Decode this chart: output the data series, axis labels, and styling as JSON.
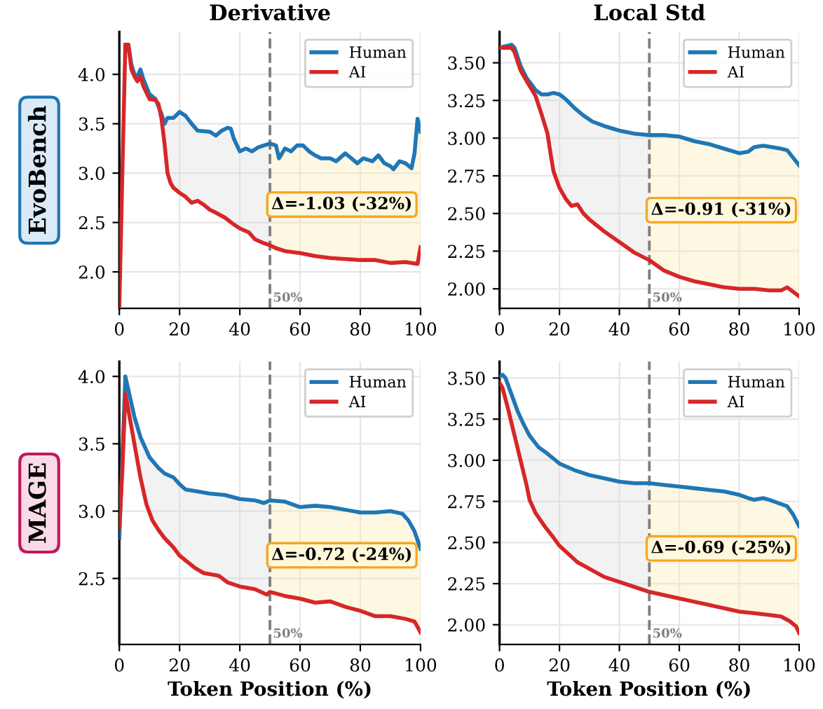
{
  "chart_data": [
    {
      "type": "line",
      "title": "Derivative",
      "ylabel": "EvoBench",
      "xlim": [
        0,
        100
      ],
      "xticks": [
        0,
        20,
        40,
        60,
        80,
        100
      ],
      "ylim": [
        1.63,
        4.43
      ],
      "yticks": [
        {
          "value": 2.0,
          "label": "2.0"
        },
        {
          "value": 2.5,
          "label": "2.5"
        },
        {
          "value": 3.0,
          "label": "3.0"
        },
        {
          "value": 3.5,
          "label": "3.5"
        },
        {
          "value": 4.0,
          "label": "4.0"
        }
      ],
      "grid": true,
      "legend": "top right",
      "series": [
        {
          "name": "Human",
          "color": "#1f77b4",
          "x": [
            2,
            3,
            4,
            5,
            6,
            7,
            8,
            10,
            12,
            14,
            15,
            16,
            18,
            20,
            22,
            24,
            26,
            30,
            32,
            34,
            36,
            37,
            38,
            40,
            42,
            44,
            46,
            48,
            50,
            52,
            53,
            55,
            57,
            59,
            61,
            63,
            65,
            67,
            70,
            72,
            75,
            77,
            79,
            81,
            84,
            86,
            88,
            90,
            91,
            93,
            95,
            97,
            98,
            99,
            100
          ],
          "values": [
            4.3,
            4.3,
            4.1,
            4.0,
            3.98,
            4.05,
            3.95,
            3.8,
            3.75,
            3.6,
            3.5,
            3.56,
            3.56,
            3.62,
            3.58,
            3.5,
            3.43,
            3.42,
            3.38,
            3.43,
            3.46,
            3.45,
            3.35,
            3.22,
            3.25,
            3.22,
            3.26,
            3.28,
            3.3,
            3.28,
            3.15,
            3.25,
            3.22,
            3.28,
            3.28,
            3.22,
            3.18,
            3.15,
            3.15,
            3.12,
            3.2,
            3.15,
            3.1,
            3.15,
            3.12,
            3.18,
            3.1,
            3.07,
            3.04,
            3.12,
            3.1,
            3.05,
            3.2,
            3.55,
            3.42
          ],
          "lower": [
            null,
            null,
            null,
            null,
            null,
            null,
            null,
            null,
            null,
            null,
            null,
            null,
            null,
            null,
            null,
            null,
            null,
            null,
            null,
            null,
            null,
            null,
            null,
            null,
            null,
            null,
            null,
            null,
            2.27,
            2.24,
            2.23,
            2.21,
            2.202,
            2.194,
            2.184,
            2.172,
            2.16,
            2.152,
            2.14,
            2.136,
            2.13,
            2.126,
            2.122,
            2.12,
            2.12,
            2.114,
            2.102,
            2.09,
            2.092,
            2.096,
            2.1,
            2.09,
            2.085,
            2.08,
            2.25
          ],
          "upper": [
            null,
            null,
            null,
            null,
            null,
            null,
            null,
            null,
            null,
            null,
            null,
            null,
            null,
            null,
            null,
            null,
            null,
            null,
            null,
            null,
            null,
            null,
            null,
            null,
            null,
            null,
            null,
            null,
            3.3,
            3.28,
            3.15,
            3.25,
            3.22,
            3.28,
            3.28,
            3.22,
            3.18,
            3.15,
            3.15,
            3.12,
            3.2,
            3.15,
            3.1,
            3.15,
            3.12,
            3.18,
            3.1,
            3.07,
            3.04,
            3.12,
            3.1,
            3.05,
            3.2,
            3.55,
            3.42
          ]
        },
        {
          "name": "AI",
          "color": "#d62728",
          "x": [
            0,
            1,
            2,
            3,
            4,
            5,
            6,
            7,
            8,
            10,
            12,
            13,
            14,
            15,
            16,
            17,
            18,
            20,
            22,
            24,
            26,
            28,
            30,
            32,
            35,
            38,
            40,
            43,
            45,
            48,
            50,
            52,
            55,
            60,
            65,
            70,
            75,
            80,
            85,
            90,
            95,
            99,
            100
          ],
          "values": [
            1.65,
            3.0,
            4.3,
            4.3,
            4.05,
            3.98,
            3.93,
            3.98,
            3.88,
            3.75,
            3.74,
            3.7,
            3.55,
            3.3,
            3.0,
            2.9,
            2.85,
            2.8,
            2.76,
            2.7,
            2.72,
            2.68,
            2.63,
            2.6,
            2.55,
            2.48,
            2.44,
            2.4,
            2.33,
            2.29,
            2.27,
            2.24,
            2.21,
            2.19,
            2.16,
            2.14,
            2.13,
            2.12,
            2.12,
            2.09,
            2.1,
            2.08,
            2.25
          ],
          "lower": [
            null,
            null,
            4.3,
            4.3,
            4.05,
            3.98,
            3.93,
            3.98,
            3.88,
            3.75,
            3.74,
            3.7,
            3.55,
            3.3,
            3.0,
            2.9,
            2.85,
            2.8,
            2.76,
            2.7,
            2.72,
            2.68,
            2.63,
            2.6,
            2.55,
            2.48,
            2.44,
            2.4,
            2.33,
            2.29,
            2.27,
            null,
            null,
            null,
            null,
            null,
            null,
            null,
            null,
            null,
            null,
            null,
            null
          ],
          "upper": [
            null,
            null,
            4.3,
            4.3,
            4.1,
            4.0,
            3.98,
            4.05,
            3.95,
            3.8,
            3.75,
            3.675,
            3.6,
            3.5,
            3.56,
            3.56,
            3.56,
            3.62,
            3.58,
            3.5,
            3.43,
            3.425,
            3.42,
            3.38,
            3.445,
            3.35,
            3.22,
            3.235,
            3.24,
            3.28,
            3.3,
            null,
            null,
            null,
            null,
            null,
            null,
            null,
            null,
            null,
            null,
            null,
            null
          ]
        }
      ],
      "ref_lines": [
        {
          "axis": "x",
          "value": 50,
          "label": "50%",
          "color": "#808080",
          "line_style": "dashed"
        }
      ],
      "annotations": [
        "Δ=-1.03 (-32%)"
      ]
    },
    {
      "type": "line",
      "title": "Local Std",
      "xlim": [
        0,
        100
      ],
      "xticks": [
        0,
        20,
        40,
        60,
        80,
        100
      ],
      "ylim": [
        1.87,
        3.705
      ],
      "yticks": [
        {
          "value": 2.0,
          "label": "2.00"
        },
        2.25,
        {
          "value": 2.5,
          "label": "2.50"
        },
        2.75,
        {
          "value": 3.0,
          "label": "3.00"
        },
        3.25,
        {
          "value": 3.5,
          "label": "3.50"
        }
      ],
      "grid": true,
      "legend": "top right",
      "series": [
        {
          "name": "Human",
          "color": "#1f77b4",
          "x": [
            0,
            2,
            4,
            5,
            7,
            9,
            12,
            14,
            16,
            18,
            20,
            22,
            25,
            28,
            31,
            35,
            40,
            45,
            50,
            55,
            60,
            65,
            70,
            75,
            80,
            83,
            85,
            88,
            91,
            94,
            96,
            98,
            100
          ],
          "values": [
            3.6,
            3.61,
            3.62,
            3.6,
            3.48,
            3.4,
            3.32,
            3.29,
            3.29,
            3.3,
            3.29,
            3.26,
            3.2,
            3.15,
            3.11,
            3.08,
            3.05,
            3.03,
            3.02,
            3.02,
            3.01,
            2.98,
            2.96,
            2.93,
            2.9,
            2.91,
            2.94,
            2.95,
            2.94,
            2.93,
            2.92,
            2.87,
            2.82
          ],
          "lower": [
            null,
            null,
            null,
            null,
            null,
            null,
            null,
            null,
            null,
            null,
            null,
            null,
            null,
            null,
            null,
            null,
            null,
            null,
            2.19,
            2.12,
            2.08,
            2.05,
            2.03,
            2.01,
            2.0,
            2.0,
            2.0,
            1.994,
            1.99,
            1.99,
            2.01,
            1.98,
            1.95
          ],
          "upper": [
            null,
            null,
            null,
            null,
            null,
            null,
            null,
            null,
            null,
            null,
            null,
            null,
            null,
            null,
            null,
            null,
            null,
            null,
            3.02,
            3.02,
            3.01,
            2.98,
            2.96,
            2.93,
            2.9,
            2.91,
            2.94,
            2.95,
            2.94,
            2.93,
            2.92,
            2.87,
            2.82
          ]
        },
        {
          "name": "AI",
          "color": "#d62728",
          "x": [
            0,
            2,
            4,
            5,
            7,
            9,
            12,
            14,
            16,
            17,
            18,
            20,
            22,
            24,
            26,
            28,
            30,
            35,
            40,
            45,
            50,
            55,
            60,
            65,
            70,
            75,
            80,
            85,
            90,
            94,
            96,
            98,
            100
          ],
          "values": [
            3.6,
            3.6,
            3.6,
            3.57,
            3.45,
            3.38,
            3.28,
            3.16,
            3.03,
            2.9,
            2.78,
            2.67,
            2.6,
            2.55,
            2.56,
            2.5,
            2.46,
            2.38,
            2.31,
            2.24,
            2.19,
            2.12,
            2.08,
            2.05,
            2.03,
            2.01,
            2.0,
            2.0,
            1.99,
            1.99,
            2.01,
            1.98,
            1.95
          ],
          "lower": [
            3.6,
            3.6,
            3.6,
            3.57,
            3.45,
            3.38,
            3.28,
            3.16,
            3.03,
            2.9,
            2.78,
            2.67,
            2.6,
            2.55,
            2.56,
            2.5,
            2.46,
            2.38,
            2.31,
            2.24,
            2.19,
            null,
            null,
            null,
            null,
            null,
            null,
            null,
            null,
            null,
            null,
            null,
            null
          ],
          "upper": [
            3.6,
            3.61,
            3.62,
            3.6,
            3.48,
            3.4,
            3.32,
            3.29,
            3.29,
            3.295,
            3.3,
            3.29,
            3.26,
            3.22,
            3.183,
            3.15,
            3.123,
            3.08,
            3.05,
            3.03,
            3.02,
            null,
            null,
            null,
            null,
            null,
            null,
            null,
            null,
            null,
            null,
            null,
            null
          ]
        }
      ],
      "ref_lines": [
        {
          "axis": "x",
          "value": 50,
          "label": "50%",
          "color": "#808080",
          "line_style": "dashed"
        }
      ],
      "annotations": [
        "Δ=-0.91 (-31%)"
      ]
    },
    {
      "type": "line",
      "ylabel": "MAGE",
      "xlabel": "Token Position (%)",
      "xlim": [
        0,
        100
      ],
      "xticks": [
        0,
        20,
        40,
        60,
        80,
        100
      ],
      "ylim": [
        2.01,
        4.11
      ],
      "yticks": [
        {
          "value": 2.5,
          "label": "2.5"
        },
        {
          "value": 3.0,
          "label": "3.0"
        },
        {
          "value": 3.5,
          "label": "3.5"
        },
        {
          "value": 4.0,
          "label": "4.0"
        }
      ],
      "grid": true,
      "legend": "top right",
      "series": [
        {
          "name": "Human",
          "color": "#1f77b4",
          "x": [
            0,
            1,
            2,
            3,
            5,
            7,
            10,
            13,
            15,
            18,
            20,
            22,
            25,
            30,
            35,
            40,
            45,
            48,
            50,
            55,
            60,
            65,
            70,
            75,
            80,
            85,
            90,
            94,
            96,
            98,
            100
          ],
          "values": [
            2.8,
            3.4,
            4.0,
            3.9,
            3.7,
            3.55,
            3.4,
            3.32,
            3.28,
            3.25,
            3.2,
            3.16,
            3.15,
            3.13,
            3.12,
            3.09,
            3.08,
            3.06,
            3.08,
            3.07,
            3.03,
            3.04,
            3.03,
            3.01,
            2.99,
            2.99,
            3.0,
            2.98,
            2.93,
            2.85,
            2.72
          ],
          "lower": [
            null,
            null,
            null,
            null,
            null,
            null,
            null,
            null,
            null,
            null,
            null,
            null,
            null,
            null,
            null,
            null,
            null,
            null,
            2.4,
            2.37,
            2.35,
            2.32,
            2.33,
            2.29,
            2.26,
            2.22,
            2.22,
            2.204,
            2.193,
            2.18,
            2.1
          ],
          "upper": [
            null,
            null,
            null,
            null,
            null,
            null,
            null,
            null,
            null,
            null,
            null,
            null,
            null,
            null,
            null,
            null,
            null,
            null,
            3.08,
            3.07,
            3.03,
            3.04,
            3.03,
            3.01,
            2.99,
            2.99,
            3.0,
            2.98,
            2.93,
            2.85,
            2.72
          ]
        },
        {
          "name": "AI",
          "color": "#d62728",
          "x": [
            0,
            1,
            2,
            3,
            5,
            7,
            9,
            11,
            13,
            15,
            18,
            20,
            25,
            28,
            33,
            36,
            40,
            45,
            49,
            50,
            55,
            60,
            65,
            70,
            75,
            80,
            85,
            90,
            95,
            98,
            100
          ],
          "values": [
            2.88,
            3.3,
            3.87,
            3.75,
            3.5,
            3.25,
            3.05,
            2.93,
            2.86,
            2.8,
            2.73,
            2.67,
            2.58,
            2.54,
            2.52,
            2.47,
            2.44,
            2.42,
            2.38,
            2.4,
            2.37,
            2.35,
            2.32,
            2.33,
            2.29,
            2.26,
            2.22,
            2.22,
            2.2,
            2.18,
            2.1
          ],
          "lower": [
            2.88,
            3.3,
            3.87,
            3.75,
            3.5,
            3.25,
            3.05,
            2.93,
            2.86,
            2.8,
            2.73,
            2.67,
            2.58,
            2.54,
            2.52,
            2.47,
            2.44,
            2.42,
            2.38,
            2.4,
            null,
            null,
            null,
            null,
            null,
            null,
            null,
            null,
            null,
            null,
            null
          ],
          "upper": [
            2.8,
            3.4,
            4.0,
            3.9,
            3.7,
            3.55,
            3.45,
            3.373,
            3.32,
            3.28,
            3.25,
            3.2,
            3.15,
            3.138,
            3.124,
            3.118,
            3.09,
            3.08,
            3.07,
            3.08,
            null,
            null,
            null,
            null,
            null,
            null,
            null,
            null,
            null,
            null,
            null
          ]
        }
      ],
      "ref_lines": [
        {
          "axis": "x",
          "value": 50,
          "label": "50%",
          "color": "#808080",
          "line_style": "dashed"
        }
      ],
      "annotations": [
        "Δ=-0.72 (-24%)"
      ]
    },
    {
      "type": "line",
      "xlabel": "Token Position (%)",
      "xlim": [
        0,
        100
      ],
      "xticks": [
        0,
        20,
        40,
        60,
        80,
        100
      ],
      "ylim": [
        1.88,
        3.6
      ],
      "yticks": [
        {
          "value": 2.0,
          "label": "2.00"
        },
        2.25,
        {
          "value": 2.5,
          "label": "2.50"
        },
        2.75,
        {
          "value": 3.0,
          "label": "3.00"
        },
        3.25,
        {
          "value": 3.5,
          "label": "3.50"
        }
      ],
      "grid": true,
      "legend": "top right",
      "series": [
        {
          "name": "Human",
          "color": "#1f77b4",
          "x": [
            0,
            1,
            2,
            4,
            6,
            8,
            10,
            13,
            16,
            20,
            25,
            30,
            35,
            40,
            45,
            50,
            55,
            60,
            65,
            70,
            75,
            80,
            83,
            85,
            88,
            90,
            93,
            96,
            98,
            100
          ],
          "values": [
            3.51,
            3.52,
            3.5,
            3.4,
            3.3,
            3.22,
            3.15,
            3.08,
            3.04,
            2.98,
            2.94,
            2.91,
            2.89,
            2.87,
            2.86,
            2.86,
            2.85,
            2.84,
            2.83,
            2.82,
            2.81,
            2.79,
            2.77,
            2.76,
            2.77,
            2.76,
            2.74,
            2.72,
            2.67,
            2.6
          ],
          "lower": [
            null,
            null,
            null,
            null,
            null,
            null,
            null,
            null,
            null,
            null,
            null,
            null,
            null,
            null,
            null,
            2.2,
            2.18,
            2.16,
            2.14,
            2.12,
            2.1,
            2.08,
            2.074,
            2.07,
            2.064,
            2.06,
            2.053,
            2.04,
            2.007,
            1.95
          ],
          "upper": [
            null,
            null,
            null,
            null,
            null,
            null,
            null,
            null,
            null,
            null,
            null,
            null,
            null,
            null,
            null,
            2.86,
            2.85,
            2.84,
            2.83,
            2.82,
            2.81,
            2.79,
            2.77,
            2.76,
            2.77,
            2.76,
            2.74,
            2.72,
            2.67,
            2.6
          ]
        },
        {
          "name": "AI",
          "color": "#d62728",
          "x": [
            0,
            1,
            3,
            5,
            7,
            9,
            10,
            12,
            15,
            18,
            20,
            23,
            26,
            30,
            35,
            40,
            45,
            50,
            55,
            60,
            65,
            70,
            75,
            80,
            85,
            90,
            94,
            97,
            99,
            100
          ],
          "values": [
            3.47,
            3.44,
            3.3,
            3.15,
            3.0,
            2.85,
            2.76,
            2.68,
            2.6,
            2.53,
            2.48,
            2.43,
            2.38,
            2.34,
            2.29,
            2.26,
            2.23,
            2.2,
            2.18,
            2.16,
            2.14,
            2.12,
            2.1,
            2.08,
            2.07,
            2.06,
            2.05,
            2.02,
            1.99,
            1.95
          ],
          "lower": [
            3.47,
            3.44,
            3.3,
            3.15,
            3.0,
            2.85,
            2.76,
            2.68,
            2.6,
            2.53,
            2.48,
            2.43,
            2.38,
            2.34,
            2.29,
            2.26,
            2.23,
            2.2,
            null,
            null,
            null,
            null,
            null,
            null,
            null,
            null,
            null,
            null,
            null,
            null
          ],
          "upper": [
            3.51,
            3.52,
            3.45,
            3.35,
            3.26,
            3.185,
            3.15,
            3.103,
            3.053,
            3.01,
            2.98,
            2.956,
            2.934,
            2.91,
            2.89,
            2.87,
            2.86,
            2.86,
            null,
            null,
            null,
            null,
            null,
            null,
            null,
            null,
            null,
            null,
            null,
            null
          ]
        }
      ],
      "ref_lines": [
        {
          "axis": "x",
          "value": 50,
          "label": "50%",
          "color": "#808080",
          "line_style": "dashed"
        }
      ],
      "annotations": [
        "Δ=-0.69 (-25%)"
      ]
    }
  ]
}
